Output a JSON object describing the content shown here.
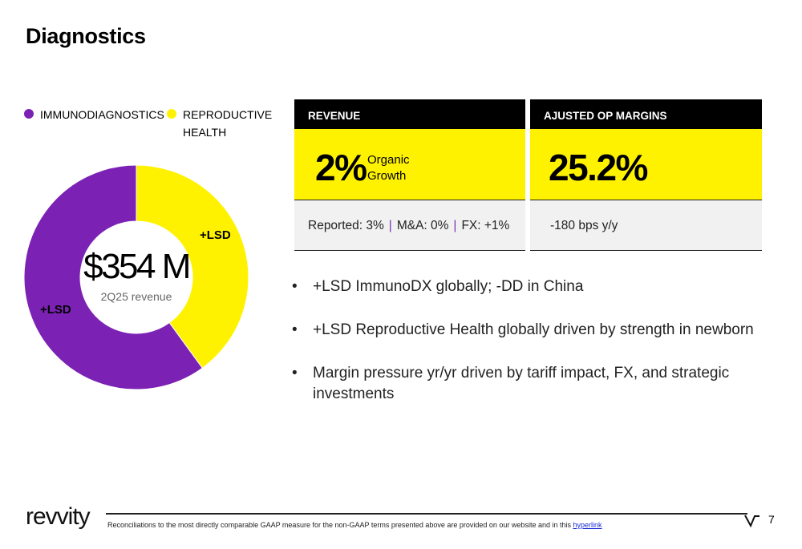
{
  "page": {
    "title": "Diagnostics",
    "page_number": "7"
  },
  "legend": [
    {
      "label": "IMMUNODIAGNOSTICS",
      "color": "#7b22b4"
    },
    {
      "label": "REPRODUCTIVE",
      "label2": "HEALTH",
      "color": "#fff200"
    }
  ],
  "donut": {
    "center_value": "$354 M",
    "center_caption": "2Q25 revenue",
    "segments": [
      {
        "name": "Reproductive Health",
        "label": "+LSD",
        "share": 0.4,
        "color": "#fff200"
      },
      {
        "name": "Immunodiagnostics",
        "label": "+LSD",
        "share": 0.6,
        "color": "#7b22b4"
      }
    ]
  },
  "revenue": {
    "header": "REVENUE",
    "value": "2%",
    "sub_line1": "Organic",
    "sub_line2": "Growth",
    "reported": "Reported: 3%",
    "ma": "M&A: 0%",
    "fx": "FX: +1%",
    "separator": "|"
  },
  "margins": {
    "header": "AJUSTED OP MARGINS",
    "value": "25.2%",
    "change": "-180 bps y/y"
  },
  "bullets": [
    "+LSD ImmunoDX globally; -DD in China",
    "+LSD Reproductive Health globally driven by strength in newborn",
    "Margin pressure yr/yr driven by tariff impact, FX, and strategic investments"
  ],
  "footer": {
    "logo_text": "revvity",
    "note": "Reconciliations to the most directly comparable GAAP measure for the non-GAAP terms presented above are provided on our website and in this",
    "link_text": "hyperlink"
  }
}
